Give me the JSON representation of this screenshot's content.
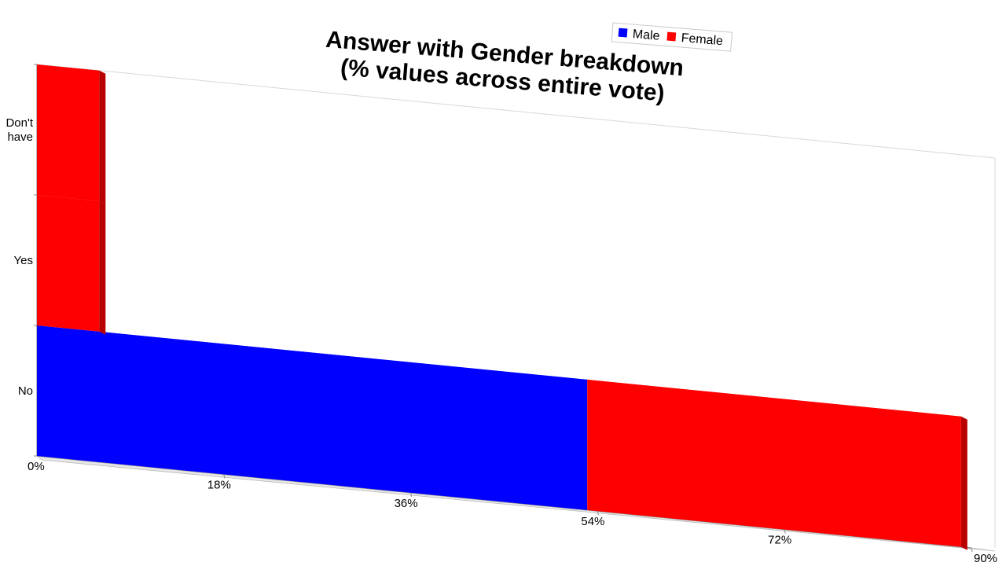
{
  "chart_data": {
    "type": "bar",
    "orientation": "horizontal",
    "stacked": true,
    "title": [
      "Answer with Gender breakdown",
      "(% values across entire vote)"
    ],
    "categories": [
      "No",
      "Yes",
      "Don't have"
    ],
    "series": [
      {
        "name": "Male",
        "color": "#0000ff",
        "values": [
          53.0,
          0,
          0
        ]
      },
      {
        "name": "Female",
        "color": "#ff0000",
        "values": [
          36.0,
          6.0,
          6.0
        ]
      }
    ],
    "xlim": [
      0,
      90
    ],
    "x_ticks": [
      "0%",
      "18%",
      "36%",
      "54%",
      "72%",
      "90%"
    ],
    "legend_position": "top-right",
    "grid": false
  }
}
